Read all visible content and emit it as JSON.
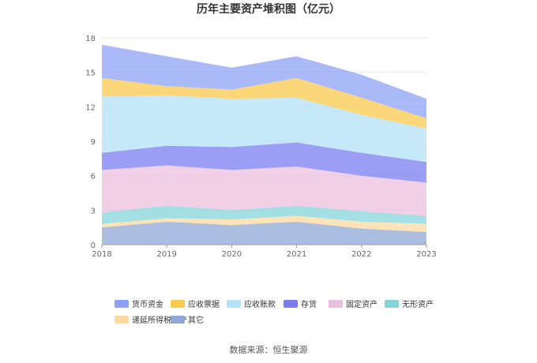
{
  "chart_data": {
    "type": "area",
    "stacked": true,
    "title": "历年主要资产堆积图（亿元）",
    "x": [
      "2018",
      "2019",
      "2020",
      "2021",
      "2022",
      "2023"
    ],
    "yticks": [
      "0",
      "3",
      "6",
      "9",
      "12",
      "15",
      "18"
    ],
    "ylim": [
      0,
      18
    ],
    "grid": true,
    "legend_position": "bottom",
    "series": [
      {
        "name": "其它",
        "color": "#8fa8d8",
        "values": [
          1.5,
          2.0,
          1.7,
          2.0,
          1.4,
          1.1
        ]
      },
      {
        "name": "递延所得税资产",
        "color": "#fdd9a0",
        "values": [
          0.3,
          0.3,
          0.5,
          0.5,
          0.6,
          0.7
        ]
      },
      {
        "name": "无形资产",
        "color": "#86d6d9",
        "values": [
          1.0,
          1.1,
          0.8,
          0.9,
          0.9,
          0.7
        ]
      },
      {
        "name": "固定资产",
        "color": "#ebbfdf",
        "values": [
          3.7,
          3.5,
          3.5,
          3.4,
          3.1,
          2.9
        ]
      },
      {
        "name": "存货",
        "color": "#7b7cf2",
        "values": [
          1.5,
          1.7,
          2.0,
          2.1,
          2.0,
          1.8
        ]
      },
      {
        "name": "应收账款",
        "color": "#b3e2f8",
        "values": [
          4.9,
          4.4,
          4.2,
          3.9,
          3.3,
          2.9
        ]
      },
      {
        "name": "应收票据",
        "color": "#fbc94d",
        "values": [
          1.6,
          0.8,
          0.8,
          1.7,
          1.5,
          0.9
        ]
      },
      {
        "name": "货币资金",
        "color": "#8ea2f5",
        "values": [
          2.9,
          2.6,
          1.9,
          1.9,
          2.0,
          1.7
        ]
      }
    ],
    "legend_order": [
      "货币资金",
      "应收票据",
      "应收账款",
      "存货",
      "固定资产",
      "无形资产",
      "递延所得税资产",
      "其它"
    ]
  },
  "source": "数据来源：恒生聚源"
}
